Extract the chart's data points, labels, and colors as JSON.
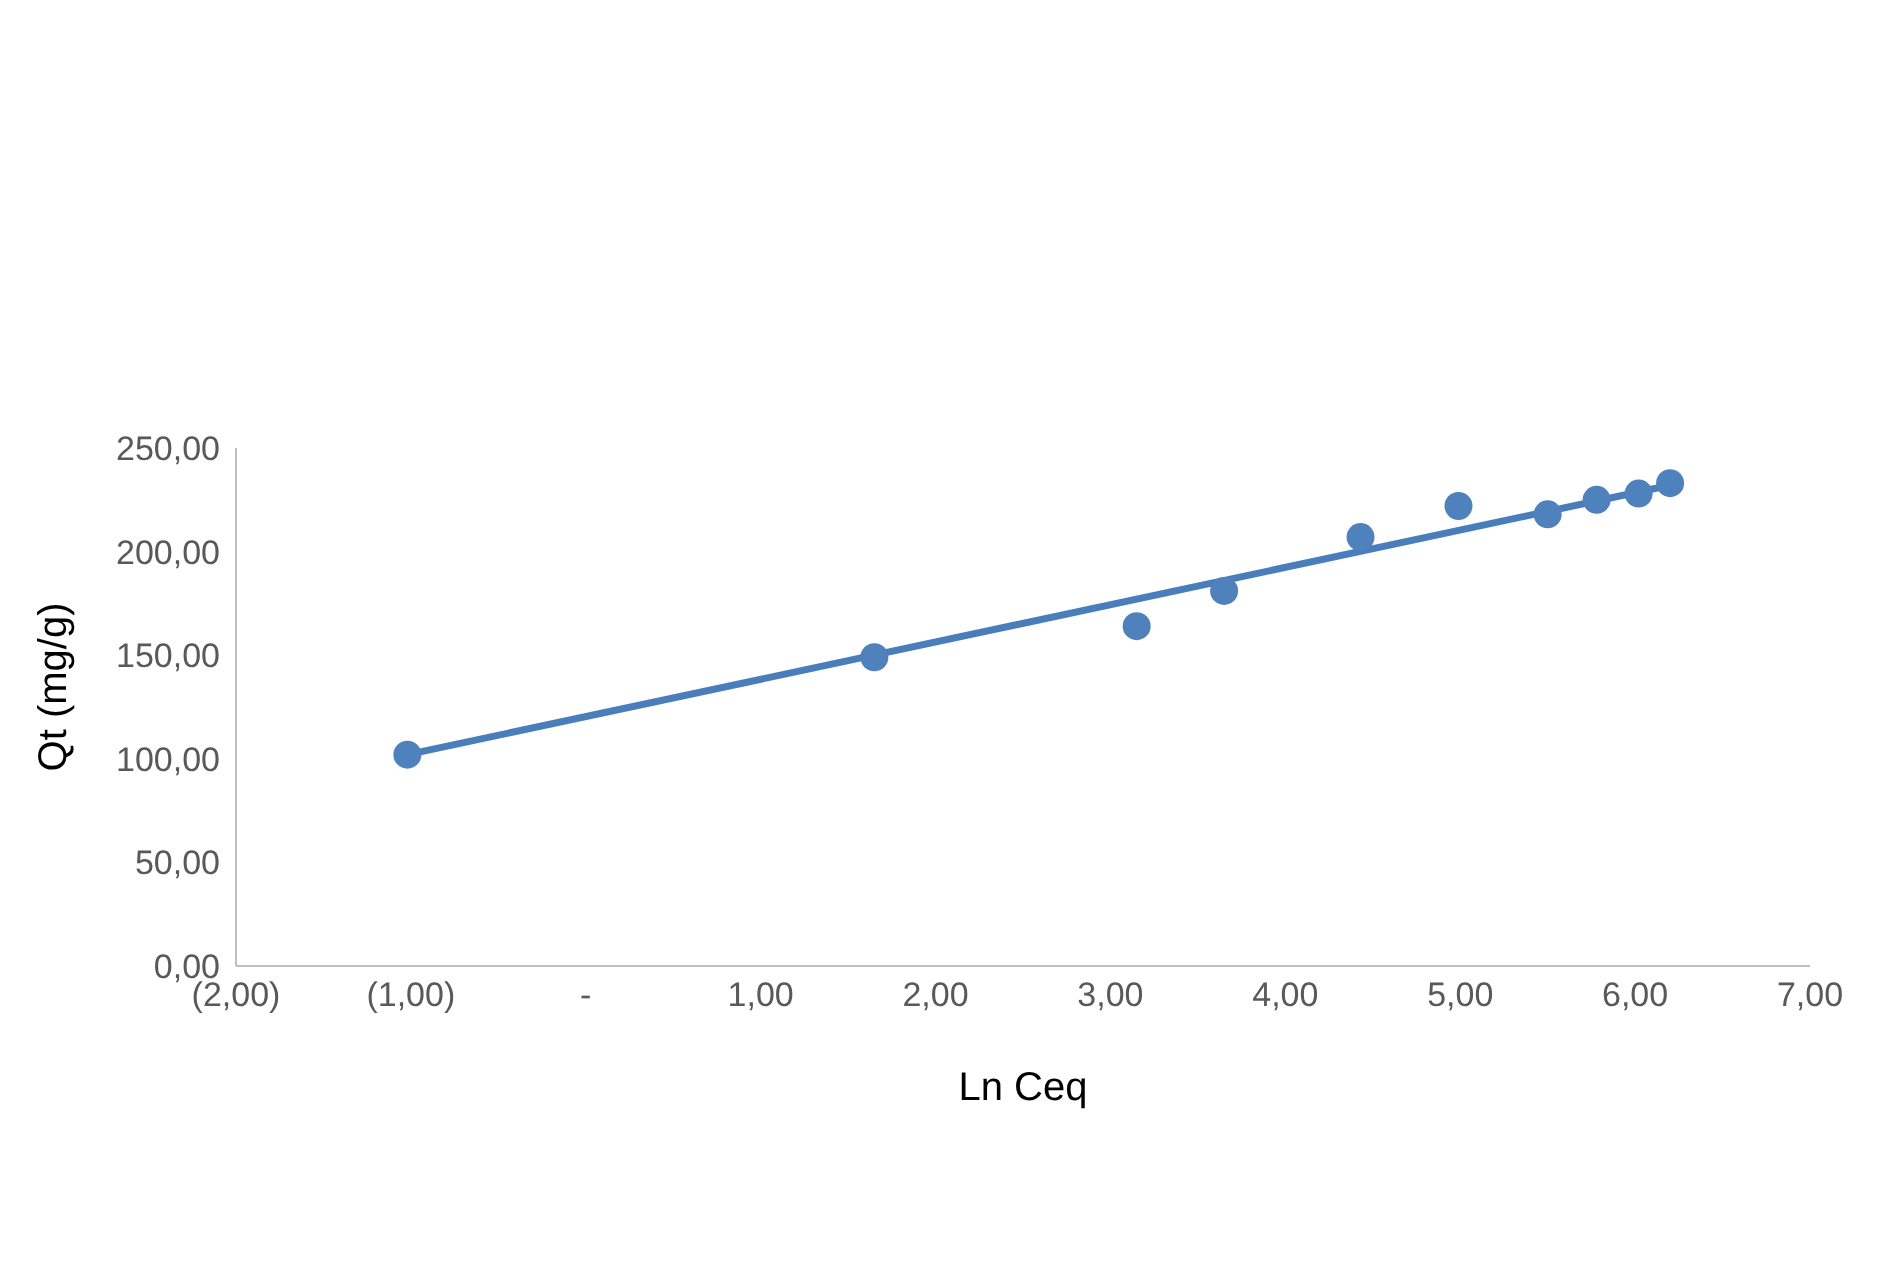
{
  "chart_data": {
    "type": "scatter",
    "xlabel": "Ln Ceq",
    "ylabel": "Qt (mg/g)",
    "xlim": [
      -2,
      7
    ],
    "xticks": [
      {
        "value": -2,
        "label": "(2,00)"
      },
      {
        "value": -1,
        "label": "(1,00)"
      },
      {
        "value": 0,
        "label": "-"
      },
      {
        "value": 1,
        "label": "1,00"
      },
      {
        "value": 2,
        "label": "2,00"
      },
      {
        "value": 3,
        "label": "3,00"
      },
      {
        "value": 4,
        "label": "4,00"
      },
      {
        "value": 5,
        "label": "5,00"
      },
      {
        "value": 6,
        "label": "6,00"
      },
      {
        "value": 7,
        "label": "7,00"
      }
    ],
    "ylim": [
      0,
      250
    ],
    "yticks": [
      {
        "value": 0,
        "label": "0,00"
      },
      {
        "value": 50,
        "label": "50,00"
      },
      {
        "value": 100,
        "label": "100,00"
      },
      {
        "value": 150,
        "label": "150,00"
      },
      {
        "value": 200,
        "label": "200,00"
      },
      {
        "value": 250,
        "label": "250,00"
      }
    ],
    "grid": false,
    "legend": false,
    "marker": "circle",
    "series": [
      {
        "color": "#4f81bd",
        "x": [
          -1.02,
          1.65,
          3.15,
          3.65,
          4.43,
          4.99,
          5.5,
          5.78,
          6.02,
          6.2
        ],
        "values": [
          102,
          149,
          164,
          181,
          207,
          222,
          218,
          225,
          228,
          233
        ]
      },
      {
        "type": "line",
        "color": "#4a7ebb",
        "line_style": "solid",
        "marker": "none",
        "x": [
          -1.02,
          6.2
        ],
        "values": [
          102,
          232
        ]
      }
    ]
  }
}
